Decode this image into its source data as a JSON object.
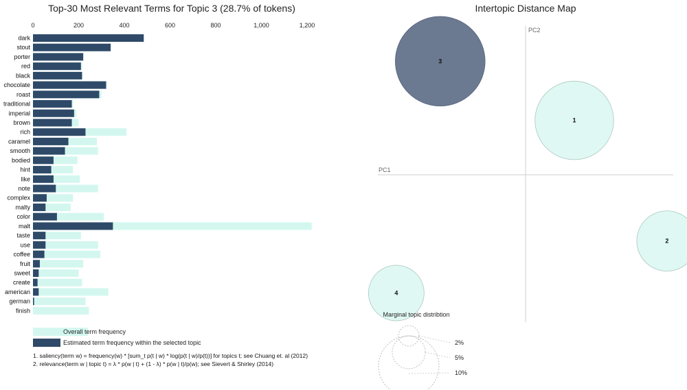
{
  "bar_panel": {
    "title": "Top-30 Most Relevant Terms for Topic 3 (28.7% of tokens)",
    "legend": {
      "overall": "Overall term frequency",
      "topic": "Estimated term frequency within the selected topic"
    },
    "footnotes": [
      "1. saliency(term w) = frequency(w) * [sum_t p(t | w) * log(p(t | w)/p(t))] for topics t; see Chuang et. al (2012)",
      "2. relevance(term w | topic t) = λ * p(w | t) + (1 - λ) * p(w | t)/p(w); see Sievert & Shirley (2014)"
    ]
  },
  "map_panel": {
    "title": "Intertopic Distance Map",
    "pc1_label": "PC1",
    "pc2_label": "PC2",
    "marginal_title": "Marginal topic distribtion",
    "marginal_labels": [
      "2%",
      "5%",
      "10%"
    ]
  },
  "colors": {
    "overall": "#d3f7ef",
    "topic": "#2f4a68",
    "selected_circle": "#6b7a91",
    "circle_fill": "#e0f8f3",
    "circle_stroke": "#a9c7c0"
  },
  "chart_data": [
    {
      "type": "bar",
      "orientation": "horizontal",
      "title": "Top-30 Most Relevant Terms for Topic 3 (28.7% of tokens)",
      "xlim": [
        0,
        1300
      ],
      "xticks": [
        "0",
        "200",
        "400",
        "600",
        "800",
        "1,000",
        "1,200"
      ],
      "xtick_values": [
        0,
        200,
        400,
        600,
        800,
        1000,
        1200
      ],
      "categories": [
        "dark",
        "stout",
        "porter",
        "red",
        "black",
        "chocolate",
        "roast",
        "traditional",
        "imperial",
        "brown",
        "rich",
        "caramel",
        "smooth",
        "bodied",
        "hint",
        "like",
        "note",
        "complex",
        "malty",
        "color",
        "malt",
        "taste",
        "use",
        "coffee",
        "fruit",
        "sweet",
        "create",
        "american",
        "german",
        "finish"
      ],
      "series": [
        {
          "name": "Overall term frequency",
          "values": [
            480,
            340,
            220,
            215,
            215,
            325,
            300,
            175,
            190,
            200,
            410,
            280,
            285,
            195,
            175,
            205,
            285,
            175,
            165,
            310,
            1220,
            210,
            285,
            295,
            220,
            200,
            215,
            330,
            230,
            245
          ]
        },
        {
          "name": "Estimated term frequency within the selected topic",
          "values": [
            485,
            340,
            220,
            210,
            215,
            320,
            290,
            170,
            180,
            170,
            230,
            155,
            140,
            90,
            80,
            90,
            100,
            60,
            55,
            105,
            350,
            55,
            55,
            50,
            30,
            25,
            20,
            25,
            5,
            0
          ]
        }
      ]
    },
    {
      "type": "scatter",
      "title": "Intertopic Distance Map",
      "xlabel": "PC1",
      "ylabel": "PC2",
      "points": [
        {
          "label": "3",
          "pc1": -0.35,
          "pc2": 0.48,
          "size": 28.7,
          "selected": true
        },
        {
          "label": "1",
          "pc1": 0.2,
          "pc2": 0.23,
          "size": 22,
          "selected": false
        },
        {
          "label": "2",
          "pc1": 0.58,
          "pc2": -0.28,
          "size": 13,
          "selected": false
        },
        {
          "label": "4",
          "pc1": -0.53,
          "pc2": -0.5,
          "size": 11,
          "selected": false
        }
      ],
      "xlim": [
        -0.62,
        0.62
      ],
      "ylim": [
        -0.62,
        0.62
      ],
      "marginal_sizes_percent": [
        2,
        5,
        10
      ]
    }
  ]
}
